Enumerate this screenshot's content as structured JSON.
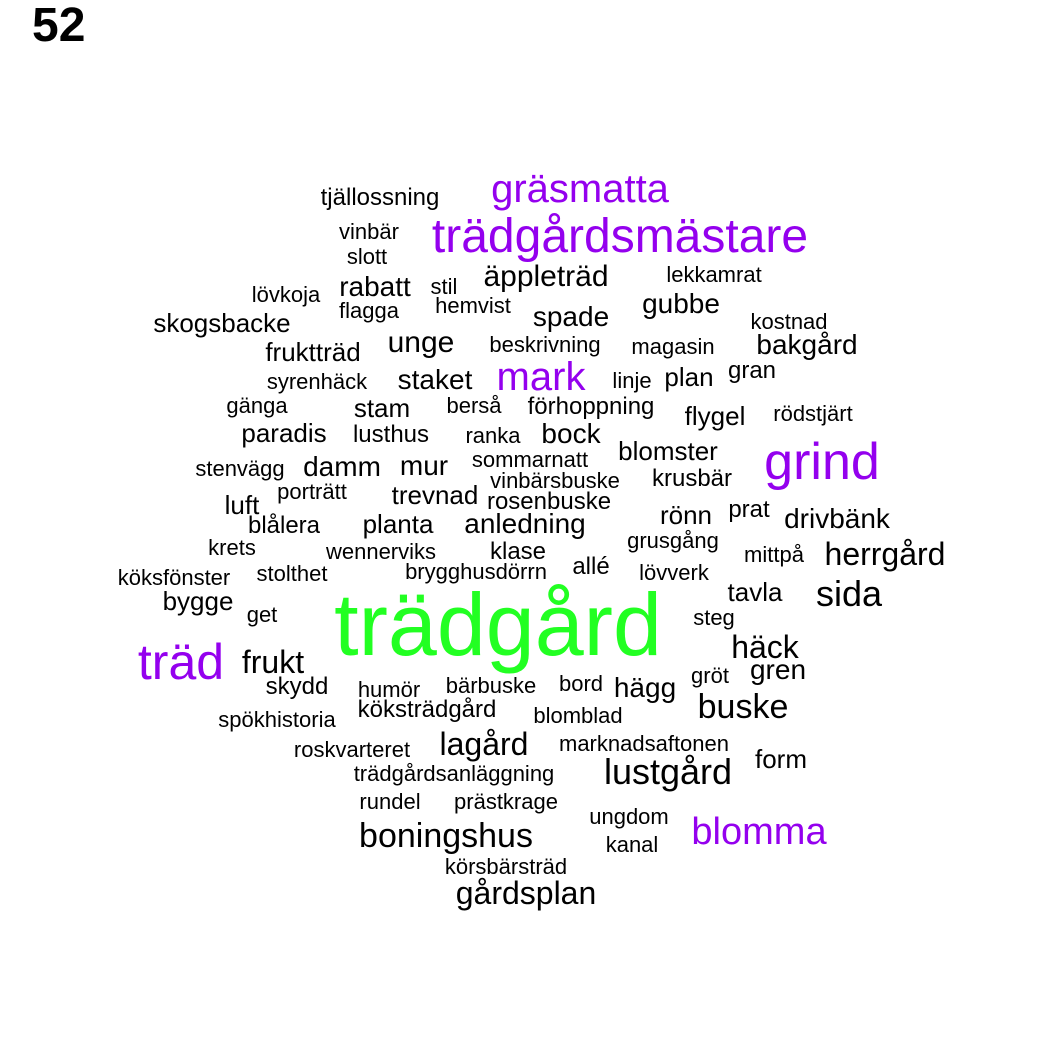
{
  "page_number": "52",
  "colors": {
    "c0": "#000000",
    "c1": "#9400ee",
    "c2": "#22ff22"
  },
  "words": [
    "tjällossning",
    "gräsmatta",
    "vinbär",
    "trädgårdsmästare",
    "slott",
    "lövkoja",
    "rabatt",
    "stil",
    "äppleträd",
    "lekkamrat",
    "flagga",
    "hemvist",
    "gubbe",
    "skogsbacke",
    "spade",
    "kostnad",
    "fruktträd",
    "unge",
    "beskrivning",
    "magasin",
    "bakgård",
    "syrenhäck",
    "staket",
    "mark",
    "linje",
    "plan",
    "gran",
    "gänga",
    "stam",
    "berså",
    "förhoppning",
    "flygel",
    "rödstjärt",
    "paradis",
    "lusthus",
    "ranka",
    "bock",
    "blomster",
    "grind",
    "stenvägg",
    "damm",
    "mur",
    "sommarnatt",
    "vinbärsbuske",
    "krusbär",
    "porträtt",
    "trevnad",
    "luft",
    "rosenbuske",
    "blålera",
    "planta",
    "anledning",
    "rönn",
    "prat",
    "drivbänk",
    "krets",
    "wennerviks",
    "klase",
    "grusgång",
    "mittpå",
    "herrgård",
    "köksfönster",
    "stolthet",
    "brygghusdörrn",
    "allé",
    "lövverk",
    "tavla",
    "sida",
    "bygge",
    "get",
    "trädgård",
    "steg",
    "träd",
    "frukt",
    "häck",
    "gren",
    "skydd",
    "humör",
    "bärbuske",
    "bord",
    "gröt",
    "hägg",
    "spökhistoria",
    "köksträdgård",
    "blomblad",
    "buske",
    "roskvarteret",
    "lagård",
    "marknadsaftonen",
    "form",
    "trädgårdsanläggning",
    "lustgård",
    "rundel",
    "prästkrage",
    "ungdom",
    "boningshus",
    "blomma",
    "kanal",
    "körsbärsträd",
    "gårdsplan"
  ]
}
